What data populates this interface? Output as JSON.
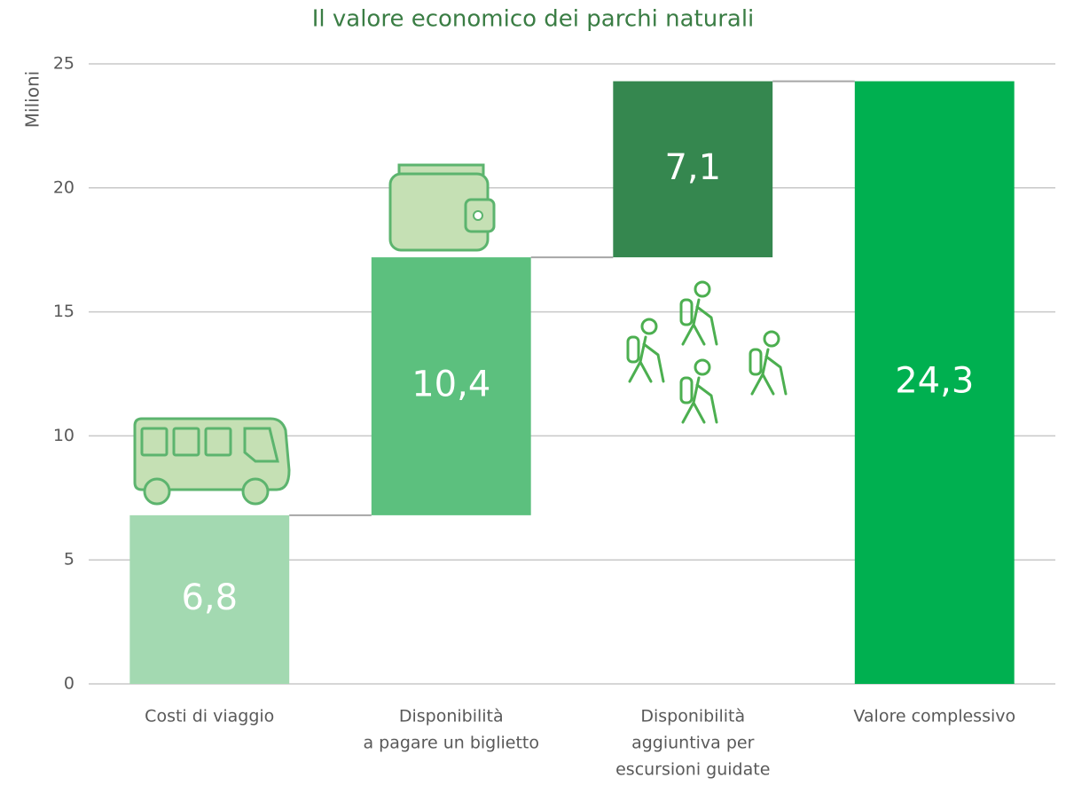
{
  "chart_data": {
    "type": "waterfall",
    "title": "Il valore economico dei parchi naturali",
    "ylabel": "Milioni",
    "categories": [
      [
        "Costi di viaggio"
      ],
      [
        "Disponibilità",
        "a pagare un biglietto"
      ],
      [
        "Disponibilità",
        "aggiuntiva per",
        "escursioni guidate"
      ],
      [
        "Valore complessivo"
      ]
    ],
    "values": [
      6.8,
      10.4,
      7.1,
      24.3
    ],
    "value_labels": [
      "6,8",
      "10,4",
      "7,1",
      "24,3"
    ],
    "colors": [
      "#a3d9b1",
      "#5cc07e",
      "#35874f",
      "#00b050"
    ],
    "totals": [
      false,
      false,
      false,
      true
    ],
    "ylim": [
      0,
      25
    ],
    "yticks": [
      0,
      5,
      10,
      15,
      20,
      25
    ],
    "grid": true
  }
}
